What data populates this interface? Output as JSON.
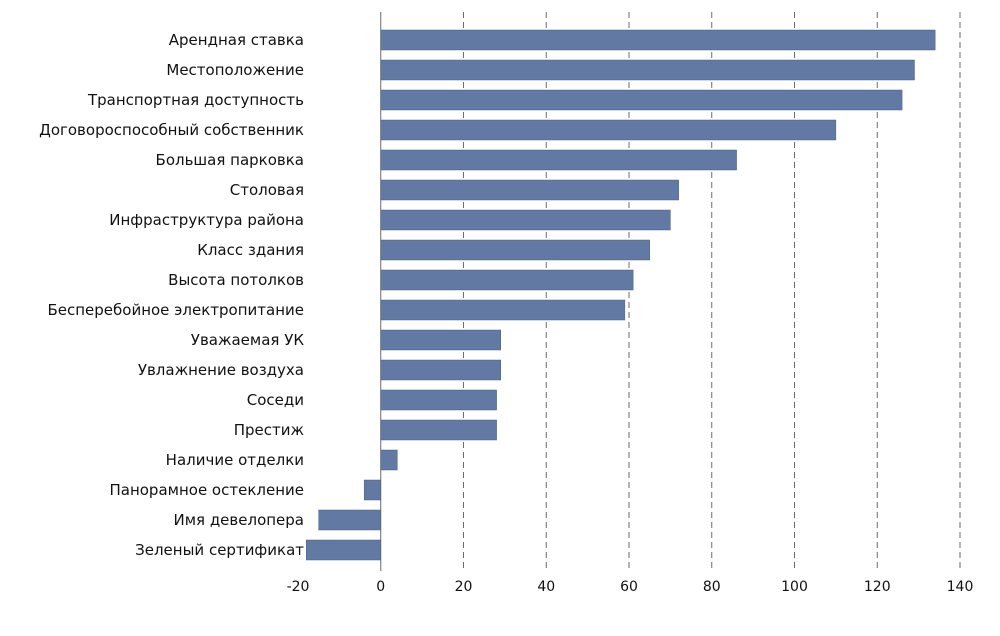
{
  "chart_data": {
    "type": "bar",
    "orientation": "horizontal",
    "categories": [
      "Арендная ставка",
      "Местоположение",
      "Транспортная доступность",
      "Договороспособный собственник",
      "Большая парковка",
      "Столовая",
      "Инфраструктура района",
      "Класс здания",
      "Высота потолков",
      "Бесперебойное электропитание",
      "Уважаемая УК",
      "Увлажнение воздуха",
      "Соседи",
      "Престиж",
      "Наличие отделки",
      "Панорамное остекление",
      "Имя девелопера",
      "Зеленый сертификат"
    ],
    "values": [
      134,
      129,
      126,
      110,
      86,
      72,
      70,
      65,
      61,
      59,
      29,
      29,
      28,
      28,
      4,
      -4,
      -15,
      -18
    ],
    "xlim": [
      -20,
      140
    ],
    "xticks": [
      -20,
      0,
      20,
      40,
      60,
      80,
      100,
      120,
      140
    ],
    "grid": true,
    "colors": {
      "bar": "#6179a3"
    }
  }
}
